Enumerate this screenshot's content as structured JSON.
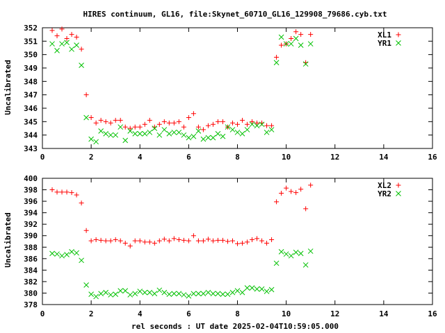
{
  "title": "HIRES continuum, GL16, file:Skynet_60710_GL16_129908_79686.cyb.txt",
  "xlabel": "rel seconds : UT date 2025-02-04T10:59:05.000",
  "colors": {
    "red": "#ff0000",
    "green": "#00c000",
    "axis": "#000000"
  },
  "chart_data": [
    {
      "type": "scatter",
      "ylabel": "Uncalibrated",
      "xlim": [
        0,
        16
      ],
      "ylim": [
        343,
        352
      ],
      "xticks": [
        0,
        2,
        4,
        6,
        8,
        10,
        12,
        14,
        16
      ],
      "yticks": [
        343,
        344,
        345,
        346,
        347,
        348,
        349,
        350,
        351,
        352
      ],
      "legend": "top-right",
      "series": [
        {
          "name": "XL1",
          "marker": "plus",
          "color": "#ff0000",
          "points": [
            [
              0.4,
              351.8
            ],
            [
              0.6,
              351.4
            ],
            [
              0.8,
              351.9
            ],
            [
              1.0,
              351.2
            ],
            [
              1.2,
              351.5
            ],
            [
              1.4,
              351.3
            ],
            [
              1.6,
              350.4
            ],
            [
              1.8,
              347.0
            ],
            [
              2.0,
              345.3
            ],
            [
              2.2,
              344.9
            ],
            [
              2.4,
              345.1
            ],
            [
              2.6,
              345.0
            ],
            [
              2.8,
              344.9
            ],
            [
              3.0,
              345.1
            ],
            [
              3.2,
              345.1
            ],
            [
              3.4,
              344.6
            ],
            [
              3.6,
              344.5
            ],
            [
              3.8,
              344.6
            ],
            [
              4.0,
              344.6
            ],
            [
              4.2,
              344.8
            ],
            [
              4.4,
              345.1
            ],
            [
              4.6,
              344.6
            ],
            [
              4.8,
              344.8
            ],
            [
              5.0,
              345.0
            ],
            [
              5.2,
              344.9
            ],
            [
              5.4,
              344.9
            ],
            [
              5.6,
              345.0
            ],
            [
              5.8,
              344.6
            ],
            [
              6.0,
              345.3
            ],
            [
              6.2,
              345.6
            ],
            [
              6.4,
              344.6
            ],
            [
              6.6,
              344.4
            ],
            [
              6.8,
              344.7
            ],
            [
              7.0,
              344.8
            ],
            [
              7.2,
              345.0
            ],
            [
              7.4,
              345.0
            ],
            [
              7.6,
              344.6
            ],
            [
              7.8,
              344.9
            ],
            [
              8.0,
              344.8
            ],
            [
              8.2,
              345.1
            ],
            [
              8.4,
              344.8
            ],
            [
              8.6,
              345.0
            ],
            [
              8.8,
              344.9
            ],
            [
              9.0,
              344.9
            ],
            [
              9.2,
              344.7
            ],
            [
              9.4,
              344.7
            ],
            [
              9.6,
              349.8
            ],
            [
              9.8,
              350.7
            ],
            [
              10.0,
              350.8
            ],
            [
              10.2,
              351.2
            ],
            [
              10.4,
              351.7
            ],
            [
              10.6,
              351.5
            ],
            [
              10.8,
              349.4
            ],
            [
              11.0,
              351.5
            ]
          ]
        },
        {
          "name": "YR1",
          "marker": "cross",
          "color": "#00c000",
          "points": [
            [
              0.4,
              350.8
            ],
            [
              0.6,
              350.3
            ],
            [
              0.8,
              350.8
            ],
            [
              1.0,
              350.9
            ],
            [
              1.2,
              350.4
            ],
            [
              1.4,
              350.7
            ],
            [
              1.6,
              349.2
            ],
            [
              1.8,
              345.3
            ],
            [
              2.0,
              343.7
            ],
            [
              2.2,
              343.5
            ],
            [
              2.4,
              344.3
            ],
            [
              2.6,
              344.1
            ],
            [
              2.8,
              344.0
            ],
            [
              3.0,
              344.0
            ],
            [
              3.2,
              344.6
            ],
            [
              3.4,
              343.6
            ],
            [
              3.6,
              344.3
            ],
            [
              3.8,
              344.1
            ],
            [
              4.0,
              344.1
            ],
            [
              4.2,
              344.1
            ],
            [
              4.4,
              344.2
            ],
            [
              4.6,
              344.5
            ],
            [
              4.8,
              344.0
            ],
            [
              5.0,
              344.4
            ],
            [
              5.2,
              344.1
            ],
            [
              5.4,
              344.2
            ],
            [
              5.6,
              344.2
            ],
            [
              5.8,
              344.0
            ],
            [
              6.0,
              343.8
            ],
            [
              6.2,
              343.9
            ],
            [
              6.4,
              344.3
            ],
            [
              6.6,
              343.7
            ],
            [
              6.8,
              343.8
            ],
            [
              7.0,
              343.8
            ],
            [
              7.2,
              344.1
            ],
            [
              7.4,
              343.9
            ],
            [
              7.6,
              344.6
            ],
            [
              7.8,
              344.4
            ],
            [
              8.0,
              344.2
            ],
            [
              8.2,
              344.1
            ],
            [
              8.4,
              344.4
            ],
            [
              8.6,
              344.8
            ],
            [
              8.8,
              344.7
            ],
            [
              9.0,
              344.8
            ],
            [
              9.2,
              344.2
            ],
            [
              9.4,
              344.4
            ],
            [
              9.6,
              349.4
            ],
            [
              9.8,
              351.3
            ],
            [
              10.0,
              350.8
            ],
            [
              10.2,
              350.8
            ],
            [
              10.4,
              351.2
            ],
            [
              10.6,
              350.7
            ],
            [
              10.8,
              349.3
            ],
            [
              11.0,
              350.8
            ]
          ]
        }
      ]
    },
    {
      "type": "scatter",
      "ylabel": "Uncalibrated",
      "xlim": [
        0,
        16
      ],
      "ylim": [
        378,
        400
      ],
      "xticks": [
        0,
        2,
        4,
        6,
        8,
        10,
        12,
        14,
        16
      ],
      "yticks": [
        378,
        380,
        382,
        384,
        386,
        388,
        390,
        392,
        394,
        396,
        398,
        400
      ],
      "legend": "top-right",
      "series": [
        {
          "name": "XL2",
          "marker": "plus",
          "color": "#ff0000",
          "points": [
            [
              0.4,
              398.0
            ],
            [
              0.6,
              397.6
            ],
            [
              0.8,
              397.6
            ],
            [
              1.0,
              397.6
            ],
            [
              1.2,
              397.5
            ],
            [
              1.4,
              397.1
            ],
            [
              1.6,
              395.7
            ],
            [
              1.8,
              390.9
            ],
            [
              2.0,
              389.1
            ],
            [
              2.2,
              389.3
            ],
            [
              2.4,
              389.2
            ],
            [
              2.6,
              389.1
            ],
            [
              2.8,
              389.1
            ],
            [
              3.0,
              389.3
            ],
            [
              3.2,
              389.1
            ],
            [
              3.4,
              388.7
            ],
            [
              3.6,
              388.2
            ],
            [
              3.8,
              389.1
            ],
            [
              4.0,
              389.1
            ],
            [
              4.2,
              388.9
            ],
            [
              4.4,
              388.9
            ],
            [
              4.6,
              388.7
            ],
            [
              4.8,
              389.1
            ],
            [
              5.0,
              389.4
            ],
            [
              5.2,
              389.1
            ],
            [
              5.4,
              389.5
            ],
            [
              5.6,
              389.3
            ],
            [
              5.8,
              389.2
            ],
            [
              6.0,
              389.1
            ],
            [
              6.2,
              390.0
            ],
            [
              6.4,
              389.1
            ],
            [
              6.6,
              389.1
            ],
            [
              6.8,
              389.4
            ],
            [
              7.0,
              389.1
            ],
            [
              7.2,
              389.2
            ],
            [
              7.4,
              389.2
            ],
            [
              7.6,
              389.0
            ],
            [
              7.8,
              389.1
            ],
            [
              8.0,
              388.6
            ],
            [
              8.2,
              388.7
            ],
            [
              8.4,
              388.9
            ],
            [
              8.6,
              389.3
            ],
            [
              8.8,
              389.5
            ],
            [
              9.0,
              389.1
            ],
            [
              9.2,
              388.7
            ],
            [
              9.4,
              389.3
            ],
            [
              9.6,
              395.9
            ],
            [
              9.8,
              397.4
            ],
            [
              10.0,
              398.3
            ],
            [
              10.2,
              397.7
            ],
            [
              10.4,
              397.5
            ],
            [
              10.6,
              398.1
            ],
            [
              10.8,
              394.7
            ],
            [
              11.0,
              398.8
            ]
          ]
        },
        {
          "name": "YR2",
          "marker": "cross",
          "color": "#00c000",
          "points": [
            [
              0.4,
              386.9
            ],
            [
              0.6,
              386.8
            ],
            [
              0.8,
              386.5
            ],
            [
              1.0,
              386.7
            ],
            [
              1.2,
              387.2
            ],
            [
              1.4,
              387.0
            ],
            [
              1.6,
              385.7
            ],
            [
              1.8,
              381.4
            ],
            [
              2.0,
              379.8
            ],
            [
              2.2,
              379.4
            ],
            [
              2.4,
              379.9
            ],
            [
              2.6,
              380.1
            ],
            [
              2.8,
              379.7
            ],
            [
              3.0,
              379.8
            ],
            [
              3.2,
              380.4
            ],
            [
              3.4,
              380.4
            ],
            [
              3.6,
              379.7
            ],
            [
              3.8,
              379.9
            ],
            [
              4.0,
              380.3
            ],
            [
              4.2,
              380.1
            ],
            [
              4.4,
              380.1
            ],
            [
              4.6,
              379.9
            ],
            [
              4.8,
              380.5
            ],
            [
              5.0,
              380.1
            ],
            [
              5.2,
              379.8
            ],
            [
              5.4,
              379.9
            ],
            [
              5.6,
              379.9
            ],
            [
              5.8,
              379.7
            ],
            [
              6.0,
              379.5
            ],
            [
              6.2,
              379.9
            ],
            [
              6.4,
              379.9
            ],
            [
              6.6,
              379.9
            ],
            [
              6.8,
              380.1
            ],
            [
              7.0,
              379.9
            ],
            [
              7.2,
              379.9
            ],
            [
              7.4,
              379.8
            ],
            [
              7.6,
              379.8
            ],
            [
              7.8,
              380.1
            ],
            [
              8.0,
              380.4
            ],
            [
              8.2,
              380.1
            ],
            [
              8.4,
              380.9
            ],
            [
              8.6,
              380.9
            ],
            [
              8.8,
              380.7
            ],
            [
              9.0,
              380.7
            ],
            [
              9.2,
              380.3
            ],
            [
              9.4,
              380.6
            ],
            [
              9.6,
              385.2
            ],
            [
              9.8,
              387.2
            ],
            [
              10.0,
              386.8
            ],
            [
              10.2,
              386.5
            ],
            [
              10.4,
              387.1
            ],
            [
              10.6,
              386.9
            ],
            [
              10.8,
              384.9
            ],
            [
              11.0,
              387.3
            ]
          ]
        }
      ]
    }
  ]
}
